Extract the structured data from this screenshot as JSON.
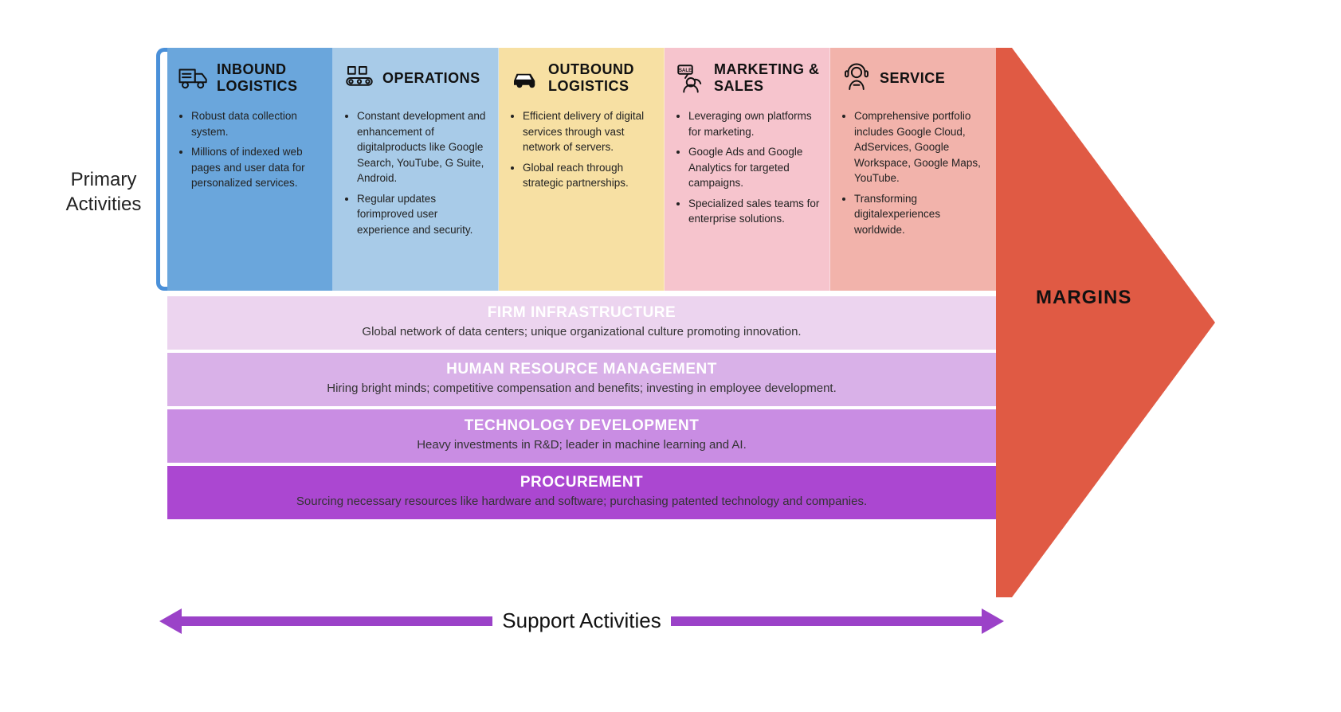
{
  "labels": {
    "primary": "Primary Activities",
    "support": "Support  Activities",
    "margins": "MARGINS"
  },
  "layout": {
    "primary_col_width": 208,
    "primary_row_height": 305,
    "support_row_gap": 4,
    "arrow_color": "#e05a44",
    "support_arrow_color": "#9b42c8",
    "bracket_color": "#4a90d9",
    "background_color": "#ffffff",
    "title_fontsize": 18,
    "bullet_fontsize": 13.5,
    "support_title_fontsize": 19,
    "support_desc_fontsize": 15,
    "label_fontsize": 24
  },
  "primary": [
    {
      "key": "inbound",
      "title": "INBOUND LOGISTICS",
      "color": "#6aa6dc",
      "icon": "truck",
      "bullets": [
        "Robust data collection system.",
        "Millions of indexed web pages and user data for personalized services."
      ]
    },
    {
      "key": "operations",
      "title": "OPERATIONS",
      "color": "#a8cbe8",
      "icon": "conveyor",
      "bullets": [
        "Constant development and enhancement of digitalproducts like Google Search, YouTube, G Suite, Android.",
        "Regular updates forimproved user experience and security."
      ]
    },
    {
      "key": "outbound",
      "title": "OUTBOUND LOGISTICS",
      "color": "#f7e0a3",
      "icon": "car",
      "bullets": [
        "Efficient delivery of digital services through vast network of servers.",
        "Global reach through strategic partnerships."
      ]
    },
    {
      "key": "marketing",
      "title": "MARKETING & SALES",
      "color": "#f6c4cd",
      "icon": "sale",
      "bullets": [
        "Leveraging own platforms for marketing.",
        "Google Ads and Google Analytics for targeted campaigns.",
        "Specialized sales teams for enterprise solutions."
      ]
    },
    {
      "key": "service",
      "title": "SERVICE",
      "color": "#f2b3ab",
      "icon": "headset",
      "bullets": [
        "Comprehensive portfolio includes Google Cloud, AdServices, Google Workspace, Google Maps, YouTube.",
        "Transforming digitalexperiences worldwide."
      ]
    }
  ],
  "support": [
    {
      "key": "firm",
      "title": "FIRM INFRASTRUCTURE",
      "color": "#ecd4ef",
      "desc": "Global network of data centers; unique organizational culture promoting innovation."
    },
    {
      "key": "hr",
      "title": "HUMAN RESOURCE MANAGEMENT",
      "color": "#d9b1e8",
      "desc": "Hiring bright minds; competitive compensation and benefits; investing in employee development."
    },
    {
      "key": "tech",
      "title": "TECHNOLOGY DEVELOPMENT",
      "color": "#c98de3",
      "desc": "Heavy investments in R&D; leader in machine learning and AI."
    },
    {
      "key": "procurement",
      "title": "PROCUREMENT",
      "color": "#ab47d1",
      "desc": "Sourcing necessary resources like hardware and software; purchasing patented technology and companies."
    }
  ]
}
